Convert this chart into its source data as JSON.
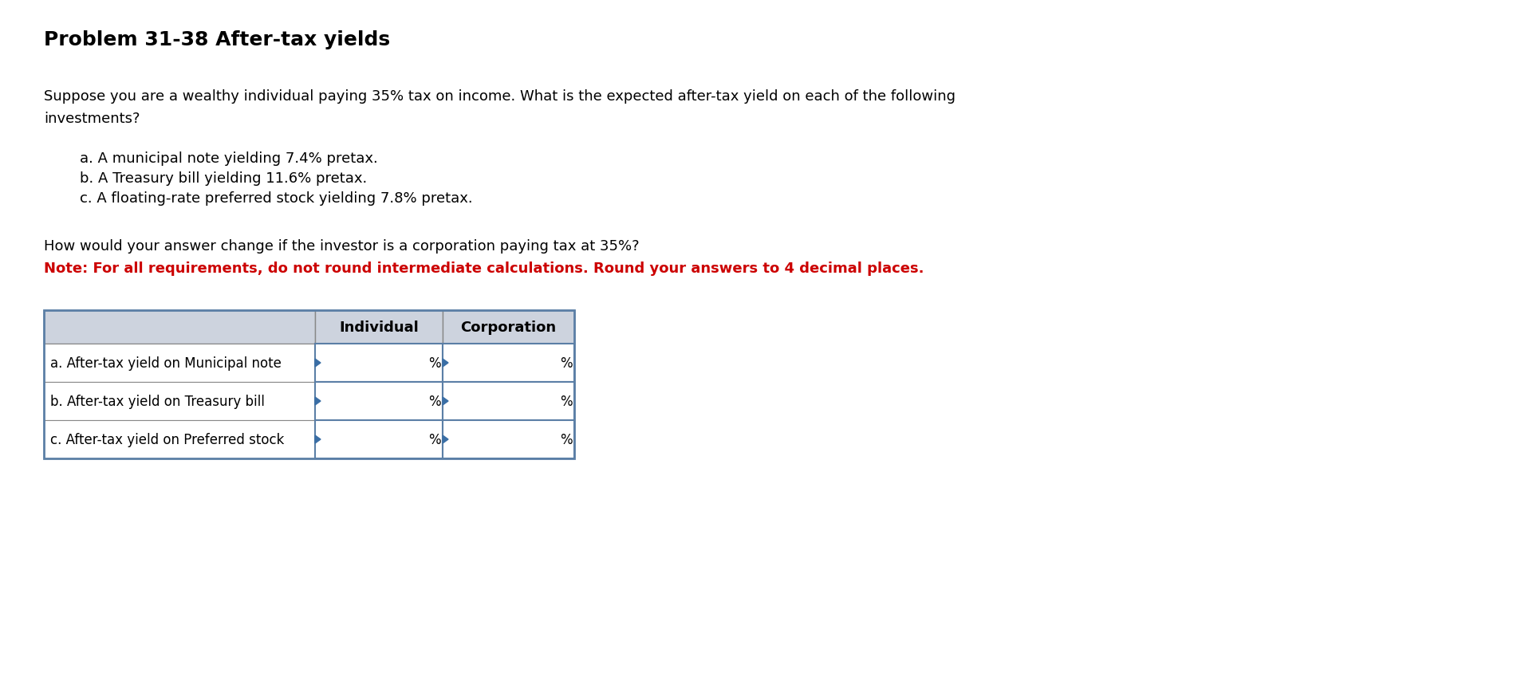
{
  "title": "Problem 31-38 After-tax yields",
  "title_fontsize": 18,
  "body_text_1a": "Suppose you are a wealthy individual paying 35% tax on income. What is the expected after-tax yield on each of the following",
  "body_text_1b": "investments?",
  "body_text_2a": "a. A municipal note yielding 7.4% pretax.",
  "body_text_2b": "b. A Treasury bill yielding 11.6% pretax.",
  "body_text_2c": "c. A floating-rate preferred stock yielding 7.8% pretax.",
  "body_text_3": "How would your answer change if the investor is a corporation paying tax at 35%?",
  "note_text": "Note: For all requirements, do not round intermediate calculations. Round your answers to 4 decimal places.",
  "table_col_headers": [
    "",
    "Individual",
    "Corporation"
  ],
  "table_rows": [
    "a. After-tax yield on Municipal note",
    "b. After-tax yield on Treasury bill",
    "c. After-tax yield on Preferred stock"
  ],
  "header_bg": "#cdd3de",
  "header_fontsize": 13,
  "row_label_fontsize": 12,
  "body_fontsize": 13,
  "note_color": "#cc0000",
  "bg_color": "#ffffff",
  "table_border_outer": "#5b7fa6",
  "table_border_inner": "#888888",
  "percent_label": "%",
  "triangle_color": "#3a6ea5"
}
